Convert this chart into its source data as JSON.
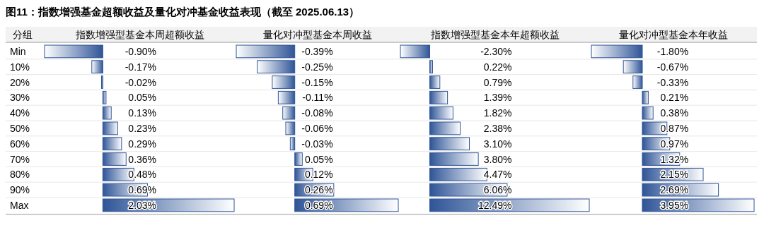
{
  "chart_data": [
    {
      "type": "bar",
      "orientation": "horizontal",
      "title": "图11：指数增强基金超额收益及量化对冲基金收益表现（截至 2025.06.13）",
      "ylabel": "分组",
      "subtitle": "指数增强型基金本周超额收益",
      "tick_labels": "y",
      "color": "#2f5597",
      "categories": [
        "Min",
        "10%",
        "20%",
        "30%",
        "40%",
        "50%",
        "60%",
        "70%",
        "80%",
        "90%",
        "Max"
      ],
      "values": [
        -0.9,
        -0.17,
        -0.02,
        0.05,
        0.13,
        0.23,
        0.29,
        0.36,
        0.48,
        0.69,
        2.03
      ],
      "value_labels": [
        "-0.90%",
        "-0.17%",
        "-0.02%",
        "0.05%",
        "0.13%",
        "0.23%",
        "0.29%",
        "0.36%",
        "0.48%",
        "0.69%",
        "2.03%"
      ]
    },
    {
      "type": "bar",
      "orientation": "horizontal",
      "subtitle": "量化对冲型基金本周收益",
      "tick_labels": false,
      "color": "#2f5597",
      "values": [
        -0.39,
        -0.25,
        -0.15,
        -0.11,
        -0.08,
        -0.06,
        -0.03,
        0.05,
        0.12,
        0.26,
        0.69
      ],
      "value_labels": [
        "-0.39%",
        "-0.25%",
        "-0.15%",
        "-0.11%",
        "-0.08%",
        "-0.06%",
        "-0.03%",
        "0.05%",
        "0.12%",
        "0.26%",
        "0.69%"
      ]
    },
    {
      "type": "bar",
      "orientation": "horizontal",
      "subtitle": "指数增强型基金本年超额收益",
      "tick_labels": false,
      "color": "#2f5597",
      "values": [
        -2.3,
        0.22,
        0.79,
        1.39,
        1.82,
        2.38,
        3.1,
        3.8,
        4.47,
        6.06,
        12.49
      ],
      "value_labels": [
        "-2.30%",
        "0.22%",
        "0.79%",
        "1.39%",
        "1.82%",
        "2.38%",
        "3.10%",
        "3.80%",
        "4.47%",
        "6.06%",
        "12.49%"
      ]
    },
    {
      "type": "bar",
      "orientation": "horizontal",
      "subtitle": "量化对冲型基金本年收益",
      "tick_labels": false,
      "color": "#2f5597",
      "values": [
        -1.8,
        -0.67,
        -0.33,
        0.21,
        0.38,
        0.87,
        0.97,
        1.32,
        2.15,
        2.69,
        3.95
      ],
      "value_labels": [
        "-1.80%",
        "-0.67%",
        "-0.33%",
        "0.21%",
        "0.38%",
        "0.87%",
        "0.97%",
        "1.32%",
        "2.15%",
        "2.69%",
        "3.95%"
      ]
    }
  ]
}
